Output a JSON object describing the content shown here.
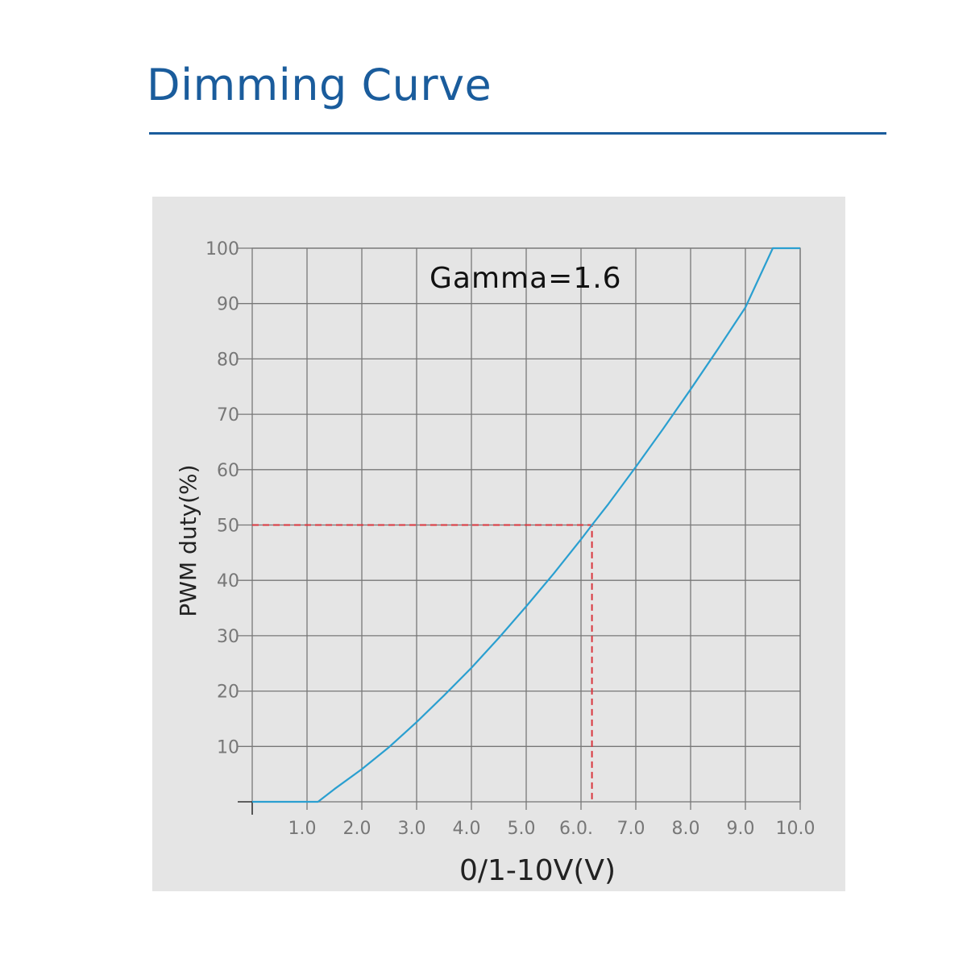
{
  "page": {
    "title": "Dimming Curve"
  },
  "colors": {
    "title": "#1a5c9c",
    "panel": "#e5e5e5",
    "grid": "#777777",
    "curve": "#2a9fd0",
    "reference": "#d9363e"
  },
  "chart_data": {
    "type": "line",
    "title": "",
    "annotation": "Gamma=1.6",
    "xlabel": "0/1-10V(V)",
    "ylabel": "PWM duty(%)",
    "xlim": [
      0,
      10
    ],
    "ylim": [
      0,
      100
    ],
    "grid": true,
    "x_ticks": [
      {
        "value": 1,
        "label": "1.0"
      },
      {
        "value": 2,
        "label": "2.0"
      },
      {
        "value": 3,
        "label": "3.0"
      },
      {
        "value": 4,
        "label": "4.0"
      },
      {
        "value": 5,
        "label": "5.0"
      },
      {
        "value": 6,
        "label": "6.0."
      },
      {
        "value": 7,
        "label": "7.0"
      },
      {
        "value": 8,
        "label": "8.0"
      },
      {
        "value": 9,
        "label": "9.0"
      },
      {
        "value": 10,
        "label": "10.0"
      }
    ],
    "y_ticks": [
      {
        "value": 10,
        "label": "10"
      },
      {
        "value": 20,
        "label": "20"
      },
      {
        "value": 30,
        "label": "30"
      },
      {
        "value": 40,
        "label": "40"
      },
      {
        "value": 50,
        "label": "50"
      },
      {
        "value": 60,
        "label": "60"
      },
      {
        "value": 70,
        "label": "70"
      },
      {
        "value": 80,
        "label": "80"
      },
      {
        "value": 90,
        "label": "90"
      },
      {
        "value": 100,
        "label": "100"
      }
    ],
    "series": [
      {
        "color": "#2a9fd0",
        "x": [
          0,
          1.2,
          1.5,
          2.0,
          2.5,
          3.0,
          3.5,
          4.0,
          4.5,
          5.0,
          5.5,
          6.0,
          6.2,
          6.5,
          7.0,
          7.5,
          8.0,
          8.5,
          9.0,
          9.5,
          10.0
        ],
        "y": [
          0,
          0,
          2.3,
          5.9,
          9.9,
          14.4,
          19.2,
          24.2,
          29.6,
          35.3,
          41.2,
          47.4,
          50.0,
          53.8,
          60.5,
          67.4,
          74.5,
          81.8,
          89.3,
          100,
          100
        ]
      }
    ],
    "reference_lines": [
      {
        "color": "#d9363e",
        "style": "dashed",
        "from": [
          0,
          50
        ],
        "via": [
          6.2,
          50
        ],
        "to": [
          6.2,
          0
        ]
      }
    ]
  }
}
